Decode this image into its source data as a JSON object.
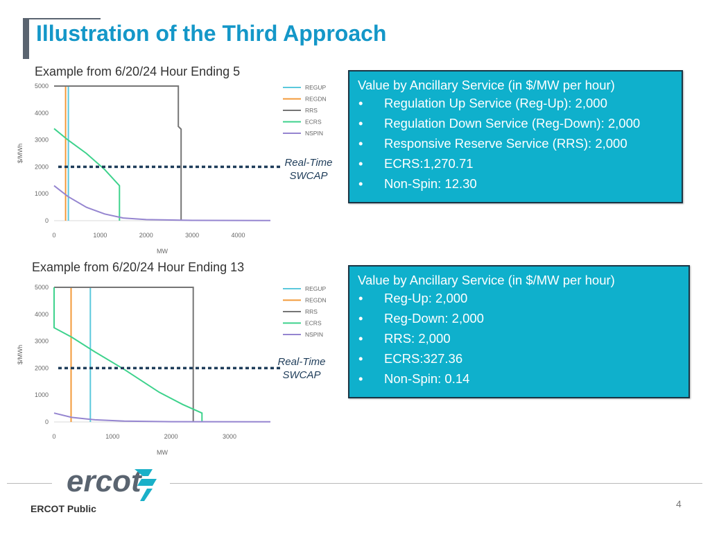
{
  "slide": {
    "title": "Illustration of the Third Approach",
    "footer_label": "ERCOT Public",
    "page_number": "4",
    "logo_text": "ercot",
    "colors": {
      "title": "#1497c8",
      "box_fill": "#0fb0cc",
      "box_border": "#1a3545",
      "swcap_line": "#1f3d5a",
      "accent_bar": "#5a6470"
    }
  },
  "top": {
    "caption": "Example from 6/20/24 Hour Ending 5",
    "swcap_label_line1": "Real-Time",
    "swcap_label_line2": "SWCAP",
    "box": {
      "header": "Value by Ancillary Service (in $/MW per hour)",
      "items": [
        "Regulation Up Service (Reg-Up):  2,000",
        "Regulation Down Service (Reg-Down): 2,000",
        "Responsive Reserve Service (RRS): 2,000",
        "ECRS:1,270.71",
        "Non-Spin: 12.30"
      ]
    }
  },
  "bottom": {
    "caption": "Example from 6/20/24 Hour Ending 13",
    "swcap_label_line1": "Real-Time",
    "swcap_label_line2": "SWCAP",
    "box": {
      "header": "Value by Ancillary Service (in $/MW per hour)",
      "items": [
        "Reg-Up:  2,000",
        "Reg-Down: 2,000",
        "RRS: 2,000",
        "ECRS:327.36",
        "Non-Spin: 0.14"
      ]
    }
  },
  "chart_data": [
    {
      "type": "line",
      "xlabel": "MW",
      "ylabel": "$/MWh",
      "xlim": [
        0,
        4700
      ],
      "ylim": [
        0,
        5000
      ],
      "xticks": [
        0,
        1000,
        2000,
        3000,
        4000
      ],
      "yticks": [
        0,
        1000,
        2000,
        3000,
        4000,
        5000
      ],
      "grid": false,
      "legend_position": "right",
      "swcap_value": 2000,
      "series": [
        {
          "name": "REGUP",
          "color": "#5bc8dc",
          "points": [
            [
              0,
              5000
            ],
            [
              310,
              5000
            ],
            [
              310,
              0
            ]
          ]
        },
        {
          "name": "REGDN",
          "color": "#f39a3a",
          "points": [
            [
              0,
              5000
            ],
            [
              250,
              5000
            ],
            [
              250,
              0
            ]
          ]
        },
        {
          "name": "RRS",
          "color": "#757575",
          "points": [
            [
              0,
              5000
            ],
            [
              2700,
              5000
            ],
            [
              2700,
              3500
            ],
            [
              2760,
              3400
            ],
            [
              2760,
              0
            ]
          ]
        },
        {
          "name": "ECRS",
          "color": "#3dd28c",
          "points": [
            [
              0,
              3420
            ],
            [
              300,
              3000
            ],
            [
              700,
              2500
            ],
            [
              1100,
              1900
            ],
            [
              1420,
              1300
            ],
            [
              1420,
              0
            ]
          ]
        },
        {
          "name": "NSPIN",
          "color": "#9585d0",
          "points": [
            [
              0,
              1300
            ],
            [
              300,
              900
            ],
            [
              700,
              500
            ],
            [
              1100,
              250
            ],
            [
              1500,
              100
            ],
            [
              2000,
              40
            ],
            [
              3000,
              12
            ],
            [
              4700,
              5
            ]
          ]
        }
      ]
    },
    {
      "type": "line",
      "xlabel": "MW",
      "ylabel": "$/MWh",
      "xlim": [
        0,
        3700
      ],
      "ylim": [
        0,
        5000
      ],
      "xticks": [
        0,
        1000,
        2000,
        3000
      ],
      "yticks": [
        0,
        1000,
        2000,
        3000,
        4000,
        5000
      ],
      "grid": false,
      "legend_position": "right",
      "swcap_value": 2000,
      "series": [
        {
          "name": "REGUP",
          "color": "#5bc8dc",
          "points": [
            [
              0,
              5000
            ],
            [
              620,
              5000
            ],
            [
              620,
              0
            ]
          ]
        },
        {
          "name": "REGDN",
          "color": "#f39a3a",
          "points": [
            [
              0,
              5000
            ],
            [
              290,
              5000
            ],
            [
              290,
              0
            ]
          ]
        },
        {
          "name": "RRS",
          "color": "#757575",
          "points": [
            [
              0,
              5000
            ],
            [
              2380,
              5000
            ],
            [
              2380,
              0
            ]
          ]
        },
        {
          "name": "ECRS",
          "color": "#3dd28c",
          "points": [
            [
              0,
              5000
            ],
            [
              0,
              3500
            ],
            [
              300,
              3150
            ],
            [
              700,
              2600
            ],
            [
              1200,
              1950
            ],
            [
              1800,
              1100
            ],
            [
              2200,
              650
            ],
            [
              2530,
              330
            ],
            [
              2530,
              0
            ]
          ]
        },
        {
          "name": "NSPIN",
          "color": "#9585d0",
          "points": [
            [
              0,
              330
            ],
            [
              300,
              170
            ],
            [
              700,
              80
            ],
            [
              1200,
              30
            ],
            [
              2000,
              10
            ],
            [
              3700,
              5
            ]
          ]
        }
      ]
    }
  ]
}
